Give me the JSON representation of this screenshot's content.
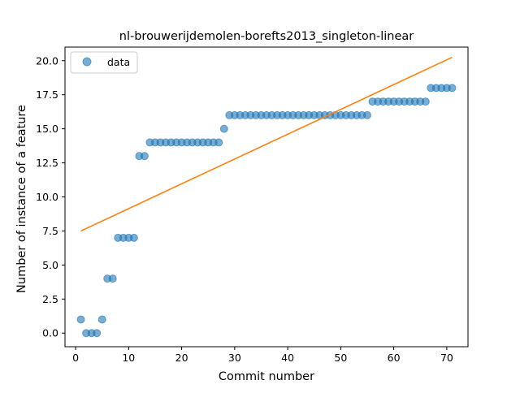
{
  "chart_data": {
    "type": "scatter",
    "title": "nl-brouwerijdemolen-borefts2013_singleton-linear",
    "xlabel": "Commit number",
    "ylabel": "Number of instance of a feature",
    "xlim": [
      -2,
      74
    ],
    "ylim": [
      -1,
      21
    ],
    "xticks": [
      0,
      10,
      20,
      30,
      40,
      50,
      60,
      70
    ],
    "xtick_labels": [
      "0",
      "10",
      "20",
      "30",
      "40",
      "50",
      "60",
      "70"
    ],
    "yticks": [
      0,
      2.5,
      5,
      7.5,
      10,
      12.5,
      15,
      17.5,
      20
    ],
    "ytick_labels": [
      "0.0",
      "2.5",
      "5.0",
      "7.5",
      "10.0",
      "12.5",
      "15.0",
      "17.5",
      "20.0"
    ],
    "grid": false,
    "legend_position": "upper-left",
    "series": [
      {
        "name": "data",
        "kind": "scatter",
        "color": "#1f77b4",
        "x": [
          1,
          2,
          3,
          4,
          5,
          6,
          7,
          8,
          9,
          10,
          11,
          12,
          13,
          14,
          15,
          16,
          17,
          18,
          19,
          20,
          21,
          22,
          23,
          24,
          25,
          26,
          27,
          28,
          29,
          30,
          31,
          32,
          33,
          34,
          35,
          36,
          37,
          38,
          39,
          40,
          41,
          42,
          43,
          44,
          45,
          46,
          47,
          48,
          49,
          50,
          51,
          52,
          53,
          54,
          55,
          56,
          57,
          58,
          59,
          60,
          61,
          62,
          63,
          64,
          65,
          66,
          67,
          68,
          69,
          70,
          71
        ],
        "y": [
          1,
          0,
          0,
          0,
          1,
          4,
          4,
          7,
          7,
          7,
          7,
          13,
          13,
          14,
          14,
          14,
          14,
          14,
          14,
          14,
          14,
          14,
          14,
          14,
          14,
          14,
          14,
          15,
          16,
          16,
          16,
          16,
          16,
          16,
          16,
          16,
          16,
          16,
          16,
          16,
          16,
          16,
          16,
          16,
          16,
          16,
          16,
          16,
          16,
          16,
          16,
          16,
          16,
          16,
          16,
          17,
          17,
          17,
          17,
          17,
          17,
          17,
          17,
          17,
          17,
          17,
          18,
          18,
          18,
          18,
          18
        ]
      },
      {
        "kind": "line",
        "color": "#ff7f0e",
        "x": [
          1,
          71
        ],
        "y": [
          7.5,
          20.25
        ]
      }
    ]
  }
}
